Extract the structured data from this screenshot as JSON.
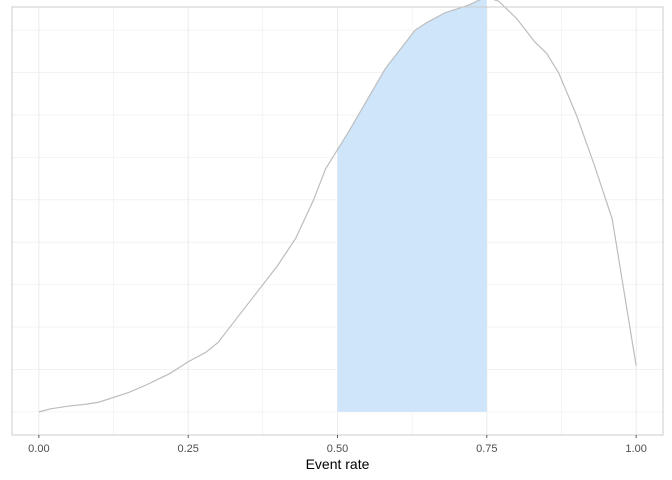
{
  "chart_data": {
    "type": "area",
    "title": "",
    "xlabel": "Event rate",
    "ylabel": "",
    "xlim": [
      -0.045,
      1.045
    ],
    "ylim": [
      -0.06,
      1.05
    ],
    "grid": true,
    "x_ticks": [
      "0.00",
      "0.25",
      "0.50",
      "0.75",
      "1.00"
    ],
    "x_tick_values": [
      0,
      0.25,
      0.5,
      0.75,
      1.0
    ],
    "y_grid_values": [
      0,
      0.11,
      0.22,
      0.33,
      0.44,
      0.55,
      0.66,
      0.77,
      0.88,
      0.99
    ],
    "shaded_region": [
      0.5,
      0.75
    ],
    "colors": {
      "curve": "#bdbdbd",
      "shade": "#cfe5f9",
      "grid": "#ebebeb",
      "panel_border": "#cccccc"
    },
    "x": [
      0.0,
      0.02,
      0.05,
      0.08,
      0.1,
      0.12,
      0.15,
      0.18,
      0.2,
      0.22,
      0.25,
      0.28,
      0.3,
      0.33,
      0.36,
      0.4,
      0.43,
      0.46,
      0.48,
      0.5,
      0.52,
      0.55,
      0.58,
      0.6,
      0.63,
      0.65,
      0.68,
      0.7,
      0.72,
      0.74,
      0.75,
      0.77,
      0.8,
      0.83,
      0.85,
      0.87,
      0.9,
      0.93,
      0.96,
      1.0
    ],
    "y": [
      0.0,
      0.008,
      0.015,
      0.02,
      0.025,
      0.035,
      0.05,
      0.07,
      0.085,
      0.1,
      0.13,
      0.155,
      0.18,
      0.24,
      0.3,
      0.38,
      0.45,
      0.55,
      0.63,
      0.68,
      0.73,
      0.81,
      0.89,
      0.93,
      0.99,
      1.01,
      1.035,
      1.045,
      1.055,
      1.07,
      1.075,
      1.065,
      1.02,
      0.96,
      0.93,
      0.88,
      0.77,
      0.64,
      0.5,
      0.12
    ]
  }
}
